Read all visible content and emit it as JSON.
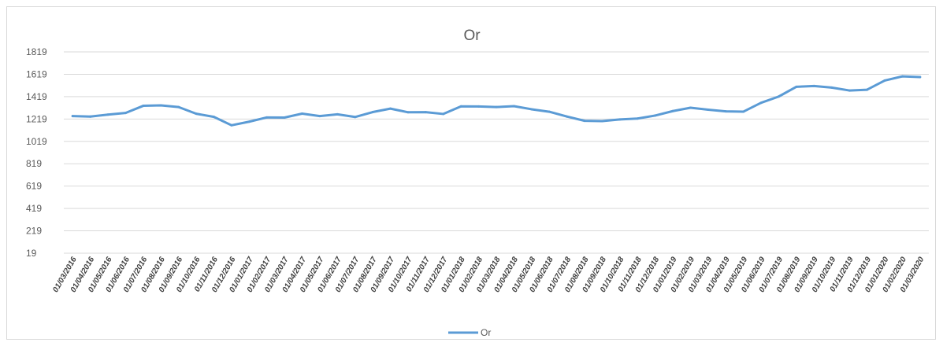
{
  "colors": {
    "series": "#5b9bd5",
    "grid": "#d9d9d9",
    "text": "#595959"
  },
  "chart_data": {
    "type": "line",
    "title": "Or",
    "xlabel": "",
    "ylabel": "",
    "grid": true,
    "legend_position": "bottom",
    "ylim": [
      19,
      1819
    ],
    "yticks": [
      19,
      219,
      419,
      619,
      819,
      1019,
      1219,
      1419,
      1619,
      1819
    ],
    "categories": [
      "01/03/2016",
      "01/04/2016",
      "01/05/2016",
      "01/06/2016",
      "01/07/2016",
      "01/08/2016",
      "01/09/2016",
      "01/10/2016",
      "01/11/2016",
      "01/12/2016",
      "01/01/2017",
      "01/02/2017",
      "01/03/2017",
      "01/04/2017",
      "01/05/2017",
      "01/06/2017",
      "01/07/2017",
      "01/08/2017",
      "01/09/2017",
      "01/10/2017",
      "01/11/2017",
      "01/12/2017",
      "01/01/2018",
      "01/02/2018",
      "01/03/2018",
      "01/04/2018",
      "01/05/2018",
      "01/06/2018",
      "01/07/2018",
      "01/08/2018",
      "01/09/2018",
      "01/10/2018",
      "01/11/2018",
      "01/12/2018",
      "01/01/2019",
      "01/02/2019",
      "01/03/2019",
      "01/04/2019",
      "01/05/2019",
      "01/06/2019",
      "01/07/2019",
      "01/08/2019",
      "01/09/2019",
      "01/10/2019",
      "01/11/2019",
      "01/12/2019",
      "01/01/2020",
      "01/02/2020",
      "01/03/2020"
    ],
    "series": [
      {
        "name": "Or",
        "values": [
          1245,
          1241,
          1258,
          1273,
          1337,
          1341,
          1326,
          1266,
          1238,
          1163,
          1195,
          1233,
          1232,
          1267,
          1245,
          1261,
          1237,
          1281,
          1312,
          1279,
          1280,
          1264,
          1332,
          1331,
          1326,
          1334,
          1306,
          1284,
          1241,
          1203,
          1200,
          1215,
          1223,
          1250,
          1290,
          1320,
          1302,
          1287,
          1285,
          1364,
          1420,
          1507,
          1514,
          1500,
          1474,
          1481,
          1563,
          1600,
          1594
        ]
      }
    ]
  }
}
